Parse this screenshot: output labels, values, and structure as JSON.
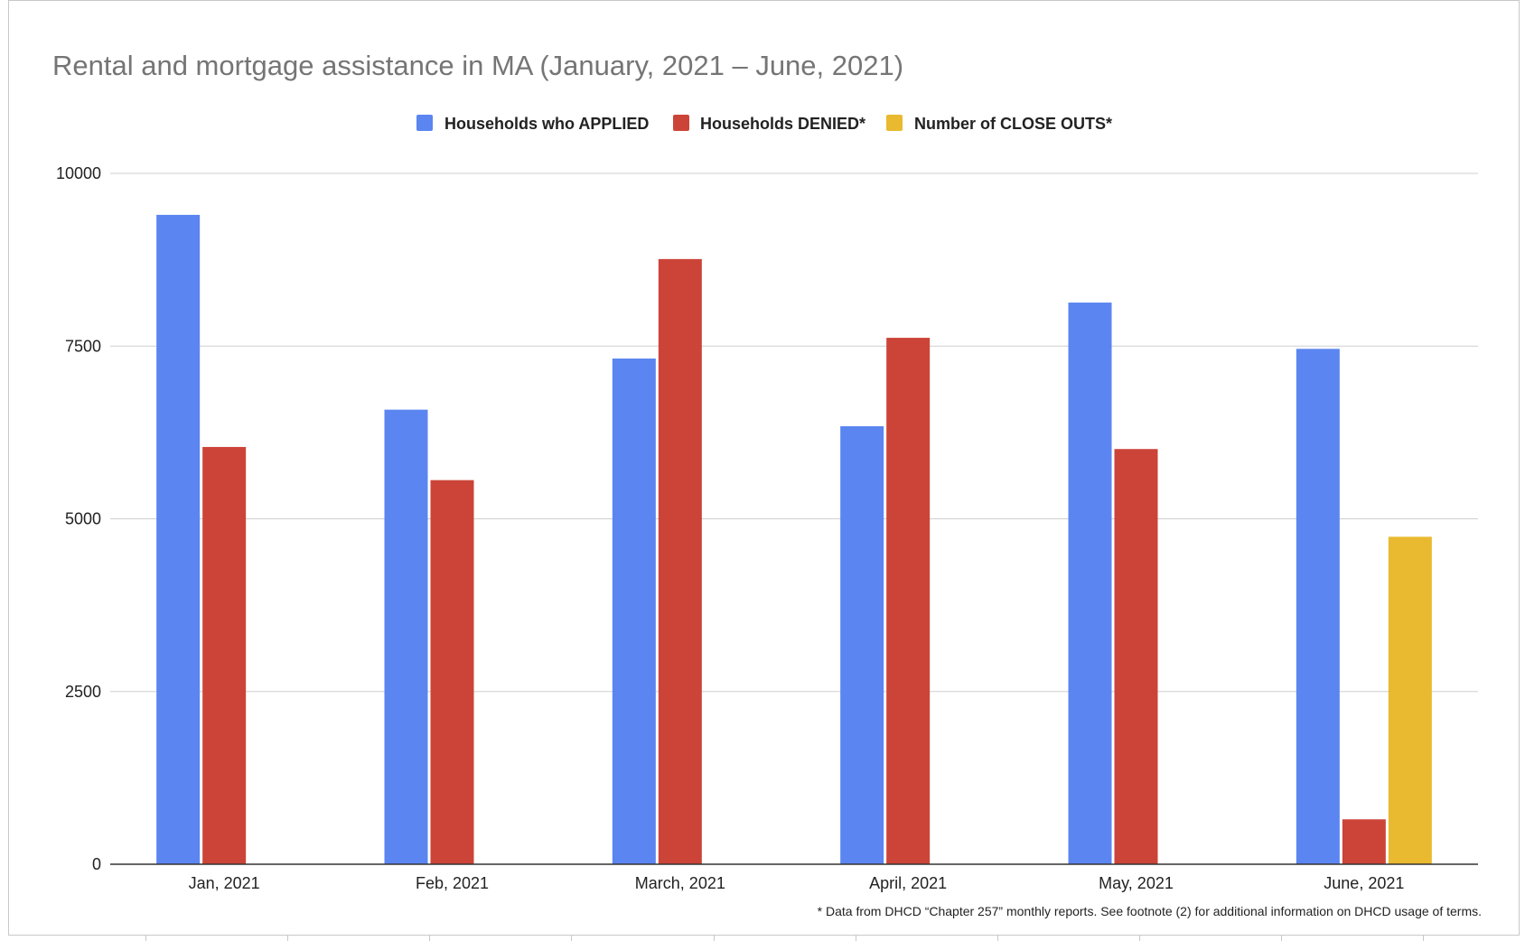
{
  "chart_data": {
    "type": "bar",
    "title": "Rental and mortgage assistance in MA (January, 2021 – June, 2021)",
    "categories": [
      "Jan, 2021",
      "Feb, 2021",
      "March, 2021",
      "April, 2021",
      "May, 2021",
      "June, 2021"
    ],
    "series": [
      {
        "name": "Households who APPLIED",
        "color": "#5b85f0",
        "values": [
          9400,
          6580,
          7320,
          6340,
          8130,
          7460
        ]
      },
      {
        "name": "Households DENIED*",
        "color": "#cc4438",
        "values": [
          6040,
          5560,
          8760,
          7620,
          6010,
          650
        ]
      },
      {
        "name": "Number of CLOSE OUTS*",
        "color": "#e9b92f",
        "values": [
          null,
          null,
          null,
          null,
          null,
          4740
        ]
      }
    ],
    "yticks": [
      "0",
      "2500",
      "5000",
      "7500",
      "10000"
    ],
    "ylim": [
      0,
      10000
    ],
    "grid": true,
    "legend_position": "top-center",
    "footnote": "* Data from DHCD “Chapter 257” monthly reports. See footnote (2) for additional information on DHCD usage of terms."
  }
}
